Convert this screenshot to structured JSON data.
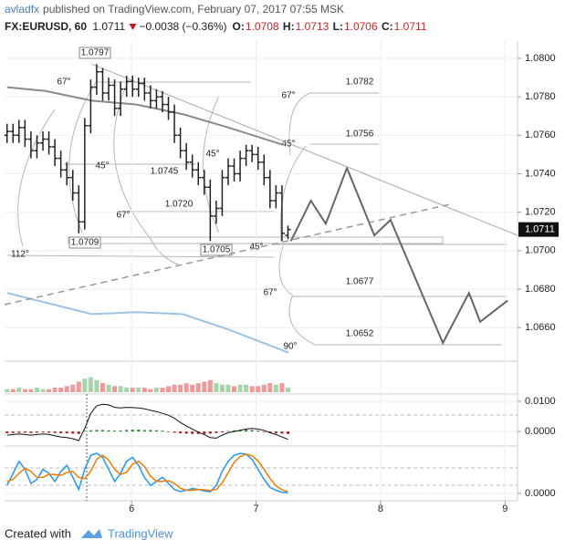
{
  "header": {
    "author": "avladfx",
    "published": "published on TradingView.com, February 07, 2017 07:55 MSK",
    "symbol": "FX:EURUSD, 60",
    "last": "1.0711",
    "change": "−0.0038 (−0.36%)",
    "quote": [
      {
        "label": "O:",
        "value": "1.0708"
      },
      {
        "label": "H:",
        "value": "1.0713"
      },
      {
        "label": "L:",
        "value": "1.0706"
      },
      {
        "label": "C:",
        "value": "1.0711"
      }
    ]
  },
  "footer": {
    "created": "Created with",
    "brand": "TradingView"
  },
  "chart_data": [
    {
      "type": "ohlc",
      "color": "#222",
      "x": [
        5,
        5.048,
        5.096,
        5.144,
        5.192,
        5.24,
        5.288,
        5.336,
        5.384,
        5.432,
        5.48,
        5.528,
        5.576,
        5.624,
        5.672,
        5.72,
        5.768,
        5.816,
        5.864,
        5.912,
        5.96,
        6.008,
        6.056,
        6.104,
        6.152,
        6.2,
        6.248,
        6.296,
        6.344,
        6.392,
        6.44,
        6.488,
        6.536,
        6.584,
        6.632,
        6.68,
        6.728,
        6.776,
        6.824,
        6.872,
        6.92,
        6.968,
        7.016,
        7.064,
        7.112,
        7.16,
        7.208,
        7.256
      ],
      "open": [
        1.076,
        1.0762,
        1.076,
        1.0764,
        1.0758,
        1.0752,
        1.0756,
        1.0758,
        1.0754,
        1.0748,
        1.0742,
        1.0738,
        1.073,
        1.0715,
        1.0765,
        1.0785,
        1.0793,
        1.0782,
        1.0786,
        1.0774,
        1.0784,
        1.0788,
        1.0784,
        1.0787,
        1.0782,
        1.0778,
        1.078,
        1.0776,
        1.0772,
        1.076,
        1.0752,
        1.0746,
        1.0742,
        1.0738,
        1.0733,
        1.0718,
        1.0722,
        1.0738,
        1.0744,
        1.074,
        1.0748,
        1.0752,
        1.075,
        1.0746,
        1.0738,
        1.0726,
        1.073,
        1.0708
      ],
      "high": [
        1.0766,
        1.0766,
        1.0768,
        1.0768,
        1.0762,
        1.076,
        1.0762,
        1.0762,
        1.0758,
        1.0752,
        1.0746,
        1.0742,
        1.0734,
        1.0769,
        1.0789,
        1.0797,
        1.0795,
        1.079,
        1.0789,
        1.0788,
        1.0791,
        1.0791,
        1.079,
        1.079,
        1.0786,
        1.0784,
        1.0783,
        1.078,
        1.0776,
        1.0764,
        1.0756,
        1.075,
        1.0746,
        1.0742,
        1.0737,
        1.0726,
        1.0742,
        1.0748,
        1.0748,
        1.0752,
        1.0755,
        1.0755,
        1.0754,
        1.075,
        1.0742,
        1.0734,
        1.0734,
        1.0713
      ],
      "low": [
        1.0756,
        1.0756,
        1.0756,
        1.0754,
        1.0748,
        1.0748,
        1.0752,
        1.075,
        1.0744,
        1.0738,
        1.0734,
        1.0726,
        1.0709,
        1.0711,
        1.0761,
        1.0781,
        1.0778,
        1.0778,
        1.077,
        1.077,
        1.078,
        1.078,
        1.078,
        1.0778,
        1.0774,
        1.0774,
        1.0772,
        1.0768,
        1.0756,
        1.0748,
        1.0742,
        1.0738,
        1.0734,
        1.0729,
        1.0705,
        1.0714,
        1.0718,
        1.0734,
        1.0736,
        1.0736,
        1.0744,
        1.0746,
        1.0742,
        1.0734,
        1.0722,
        1.0722,
        1.0705,
        1.0706
      ],
      "close": [
        1.0762,
        1.076,
        1.0764,
        1.0758,
        1.0752,
        1.0756,
        1.0758,
        1.0754,
        1.0748,
        1.0742,
        1.0738,
        1.073,
        1.0715,
        1.0765,
        1.0785,
        1.0793,
        1.0782,
        1.0786,
        1.0774,
        1.0784,
        1.0788,
        1.0784,
        1.0787,
        1.0782,
        1.0778,
        1.078,
        1.0776,
        1.0772,
        1.076,
        1.0752,
        1.0746,
        1.0742,
        1.0738,
        1.0733,
        1.0718,
        1.0722,
        1.0738,
        1.0744,
        1.074,
        1.0748,
        1.0752,
        1.075,
        1.0746,
        1.0738,
        1.0726,
        1.073,
        1.0709,
        1.0711
      ],
      "lines": [
        {
          "color": "#8a8a8a",
          "width": 2,
          "x": [
            5,
            5.31,
            5.68,
            6.04,
            6.41,
            6.78,
            7.22
          ],
          "values": [
            1.0785,
            1.0783,
            1.0778,
            1.0776,
            1.0771,
            1.0764,
            1.0755
          ]
        },
        {
          "color": "#9cc3e6",
          "width": 2,
          "x": [
            5,
            5.68,
            6.04,
            6.41,
            6.78,
            7.26
          ],
          "values": [
            1.0678,
            1.0667,
            1.0668,
            1.0667,
            1.0659,
            1.0647
          ]
        },
        {
          "color": "#666",
          "width": 2,
          "x": [
            7.28,
            7.44,
            7.56,
            7.73,
            7.95,
            8.08,
            8.5,
            8.71,
            8.8,
            9.02
          ],
          "values": [
            1.0705,
            1.0726,
            1.0714,
            1.0743,
            1.0708,
            1.0716,
            1.0652,
            1.0678,
            1.0663,
            1.0674
          ]
        },
        {
          "color": "#aaa",
          "width": 1,
          "x": [
            5.68,
            9.1
          ],
          "values": [
            1.0797,
            1.0708
          ]
        },
        {
          "color": "#999",
          "width": 1.5,
          "dashed": true,
          "x": [
            4.98,
            8.55
          ],
          "values": [
            1.0672,
            1.0724
          ]
        }
      ],
      "annotations": [
        "1.0797",
        "67°",
        "45°",
        "1.0745",
        "45°",
        "1.0720",
        "67°",
        "1.0709",
        "1.0705",
        "112°",
        "45°",
        "67°",
        "1.0782",
        "45°",
        "1.0756",
        "1.0677",
        "67°",
        "1.0652",
        "90°"
      ],
      "price_label": "1.0711",
      "xlim": [
        4.98,
        9.1
      ],
      "xticks": [
        6,
        7,
        8,
        9
      ],
      "ylim": [
        1.0643,
        1.0809
      ],
      "grid": true,
      "yticks": [
        {
          "value": 1.08,
          "label": "1.0800"
        },
        {
          "value": 1.078,
          "label": "1.0780"
        },
        {
          "value": 1.076,
          "label": "1.0760"
        },
        {
          "value": 1.074,
          "label": "1.0740"
        },
        {
          "value": 1.072,
          "label": "1.0720"
        },
        {
          "value": 1.07,
          "label": "1.0700"
        },
        {
          "value": 1.068,
          "label": "1.0680"
        },
        {
          "value": 1.066,
          "label": "1.0660"
        }
      ]
    },
    {
      "type": "bar",
      "values": [
        2,
        2,
        3,
        2,
        2,
        3,
        2,
        2,
        3,
        3,
        4,
        5,
        7,
        9,
        10,
        8,
        6,
        5,
        4,
        4,
        3,
        3,
        3,
        3,
        2,
        3,
        3,
        4,
        5,
        5,
        6,
        5,
        6,
        7,
        8,
        6,
        5,
        5,
        4,
        5,
        5,
        4,
        4,
        5,
        6,
        5,
        6,
        3
      ],
      "ylim": [
        0,
        20
      ],
      "up_color": "#a5d6a7",
      "down_color": "#ef9a9a"
    },
    {
      "type": "macd",
      "line_color": "#111",
      "up_color": "#2e7d32",
      "down_color": "#b71c1c",
      "macd": [
        -0.0012,
        -0.001,
        -0.0008,
        -0.001,
        -0.0012,
        -0.001,
        -0.0008,
        -0.001,
        -0.0014,
        -0.0018,
        -0.002,
        -0.0024,
        -0.003,
        0.001,
        0.006,
        0.0085,
        0.009,
        0.0088,
        0.008,
        0.0078,
        0.008,
        0.0079,
        0.0078,
        0.0075,
        0.007,
        0.0066,
        0.006,
        0.0054,
        0.0044,
        0.003,
        0.0018,
        0.0008,
        -0.0002,
        -0.001,
        -0.002,
        -0.0022,
        -0.0012,
        -0.0004,
        0,
        0.0004,
        0.0008,
        0.001,
        0.0008,
        0.0004,
        -0.0004,
        -0.001,
        -0.0018,
        -0.0026
      ],
      "histogram": [
        -0.0006,
        -0.0005,
        -0.0004,
        -0.0004,
        -0.0005,
        -0.0004,
        -0.0003,
        -0.0004,
        -0.0005,
        -0.0006,
        -0.0006,
        -0.0007,
        -0.0008,
        0.0002,
        0.0004,
        0.0005,
        0.0005,
        0.0004,
        0.0003,
        0.0003,
        0.0005,
        0.0006,
        0.0006,
        0.0005,
        0.0005,
        0.0004,
        0.0003,
        -0.0002,
        -0.0004,
        -0.0006,
        -0.0007,
        -0.0008,
        -0.0008,
        -0.0008,
        -0.0007,
        -0.0005,
        -0.0003,
        0.0002,
        0.0004,
        0.0005,
        0.0006,
        0.0005,
        0.0003,
        -0.0002,
        -0.0004,
        -0.0006,
        -0.0007,
        -0.0008
      ],
      "ylim": [
        -0.0045,
        0.0121
      ],
      "grid": true,
      "yticks": [
        {
          "value": 0.01,
          "label": "0.0100"
        },
        {
          "value": 0,
          "label": "0.0000"
        }
      ]
    },
    {
      "type": "stoch",
      "ylim": [
        -16,
        116
      ],
      "grid": true,
      "yticks": [
        {
          "value": 0,
          "label": "0.0000"
        }
      ],
      "series": [
        {
          "color": "#2196f3",
          "values": [
            20,
            50,
            80,
            60,
            25,
            35,
            60,
            50,
            30,
            55,
            70,
            40,
            10,
            60,
            95,
            100,
            90,
            60,
            30,
            50,
            80,
            90,
            70,
            40,
            20,
            30,
            40,
            25,
            10,
            5,
            8,
            12,
            10,
            6,
            4,
            20,
            55,
            80,
            95,
            100,
            98,
            85,
            60,
            35,
            15,
            8,
            3,
            2
          ]
        },
        {
          "color": "#f57c00",
          "values": [
            30,
            35,
            50,
            63,
            55,
            40,
            40,
            48,
            47,
            45,
            52,
            55,
            40,
            37,
            55,
            85,
            95,
            83,
            60,
            47,
            53,
            73,
            80,
            67,
            43,
            30,
            30,
            32,
            25,
            13,
            8,
            8,
            10,
            9,
            7,
            10,
            26,
            52,
            77,
            92,
            98,
            94,
            81,
            60,
            37,
            19,
            9,
            4
          ]
        }
      ]
    }
  ]
}
